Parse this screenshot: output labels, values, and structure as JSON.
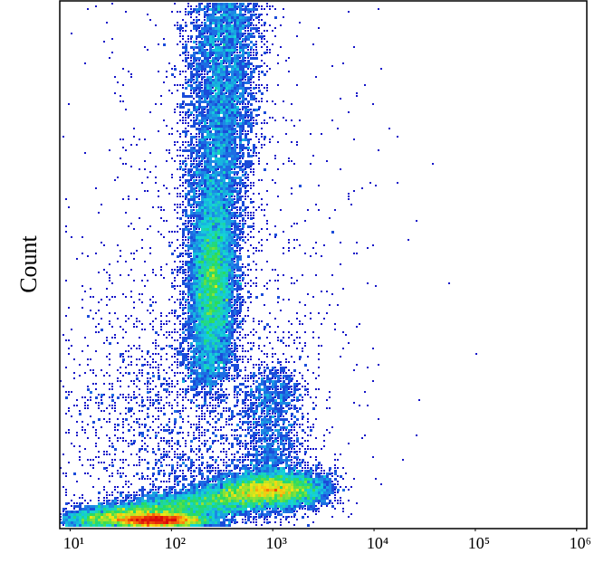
{
  "chart_data": {
    "type": "density",
    "y_label": "Count",
    "log_x": true,
    "xlim": [
      7.9,
      1260000
    ],
    "xticks": [
      {
        "value": 10,
        "label": "10¹"
      },
      {
        "value": 100,
        "label": "10²"
      },
      {
        "value": 1000,
        "label": "10³"
      },
      {
        "value": 10000,
        "label": "10⁴"
      },
      {
        "value": 100000,
        "label": "10⁵"
      },
      {
        "value": 1000000,
        "label": "10⁶"
      }
    ]
  }
}
